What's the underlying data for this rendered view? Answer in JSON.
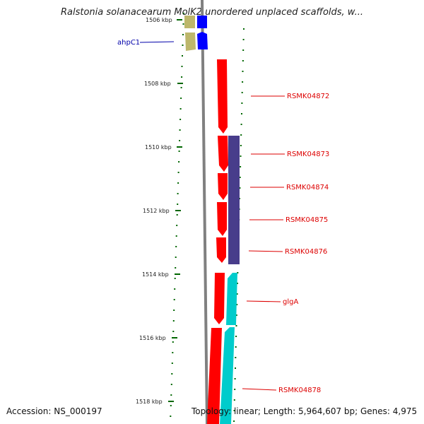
{
  "title": "Ralstonia solanacearum MolK2 unordered unplaced scaffolds, w...",
  "ticks": [
    "1506 kbp",
    "1508 kbp",
    "1510 kbp",
    "1512 kbp",
    "1514 kbp",
    "1516 kbp",
    "1518 kbp"
  ],
  "genes": [
    {
      "label": "ahpC1",
      "color": "#0000aa"
    },
    {
      "label": "RSMK04872",
      "color": "#dd0000"
    },
    {
      "label": "RSMK04873",
      "color": "#dd0000"
    },
    {
      "label": "RSMK04874",
      "color": "#dd0000"
    },
    {
      "label": "RSMK04875",
      "color": "#dd0000"
    },
    {
      "label": "RSMK04876",
      "color": "#dd0000"
    },
    {
      "label": "glgA",
      "color": "#dd0000"
    },
    {
      "label": "RSMK04878",
      "color": "#dd0000"
    }
  ],
  "footer": {
    "accession": "Accession: NS_000197",
    "summary": "Topology: linear; Length: 5,964,607 bp; Genes: 4,975"
  },
  "colors": {
    "backbone": "#808080",
    "tick": "#006600",
    "forward_gene": "#ff0000",
    "tan_gene": "#bdb76b",
    "blue_gene": "#0000ff",
    "purple_gene": "#483d8b",
    "cyan_gene": "#00cccc"
  }
}
